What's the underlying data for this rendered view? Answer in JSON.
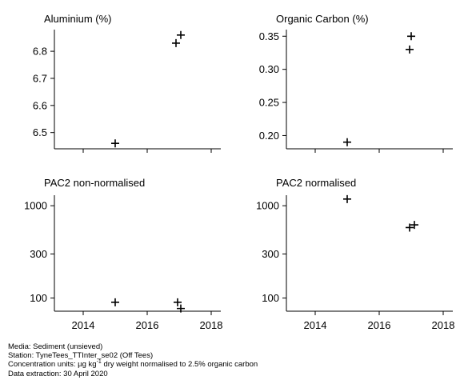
{
  "chart_data": [
    {
      "type": "scatter",
      "title": "Aluminium (%)",
      "scale": "linear",
      "ylim": [
        6.44,
        6.88
      ],
      "yticks": [
        6.5,
        6.6,
        6.7,
        6.8
      ],
      "ytick_labels": [
        "6.5",
        "6.6",
        "6.7",
        "6.8"
      ],
      "xlim": [
        2013.1,
        2018.3
      ],
      "xticks": [
        2014,
        2016,
        2018
      ],
      "xtick_labels": [],
      "x": [
        2015.0,
        2016.9,
        2017.05
      ],
      "y": [
        6.46,
        6.83,
        6.86
      ]
    },
    {
      "type": "scatter",
      "title": "Organic Carbon (%)",
      "scale": "linear",
      "ylim": [
        0.18,
        0.36
      ],
      "yticks": [
        0.2,
        0.25,
        0.3,
        0.35
      ],
      "ytick_labels": [
        "0.20",
        "0.25",
        "0.30",
        "0.35"
      ],
      "xlim": [
        2013.1,
        2018.3
      ],
      "xticks": [
        2014,
        2016,
        2018
      ],
      "xtick_labels": [],
      "x": [
        2015.0,
        2016.95,
        2017.0
      ],
      "y": [
        0.19,
        0.33,
        0.35
      ]
    },
    {
      "type": "scatter",
      "title": "PAC2 non-normalised",
      "scale": "log",
      "ylim": [
        72,
        1300
      ],
      "yticks": [
        100,
        300,
        1000
      ],
      "ytick_labels": [
        "100",
        "300",
        "1000"
      ],
      "xlim": [
        2013.1,
        2018.3
      ],
      "xticks": [
        2014,
        2016,
        2018
      ],
      "xtick_labels": [
        "2014",
        "2016",
        "2018"
      ],
      "x": [
        2015.0,
        2016.95,
        2017.05
      ],
      "y": [
        90,
        90,
        77
      ]
    },
    {
      "type": "scatter",
      "title": "PAC2 normalised",
      "scale": "log",
      "ylim": [
        72,
        1300
      ],
      "yticks": [
        100,
        300,
        1000
      ],
      "ytick_labels": [
        "100",
        "300",
        "1000"
      ],
      "xlim": [
        2013.1,
        2018.3
      ],
      "xticks": [
        2014,
        2016,
        2018
      ],
      "xtick_labels": [
        "2014",
        "2016",
        "2018"
      ],
      "x": [
        2015.0,
        2016.95,
        2017.1
      ],
      "y": [
        1180,
        580,
        620
      ]
    }
  ],
  "footer": {
    "media": "Media: Sediment (unsieved)",
    "station": "Station: TyneTees_TTInter_se02 (Off Tees)",
    "units_prefix": "Concentration units:  µg kg",
    "units_sup": "-1",
    "units_suffix": " dry weight normalised to 2.5% organic carbon",
    "extraction": "Data extraction: 30 April 2020"
  }
}
